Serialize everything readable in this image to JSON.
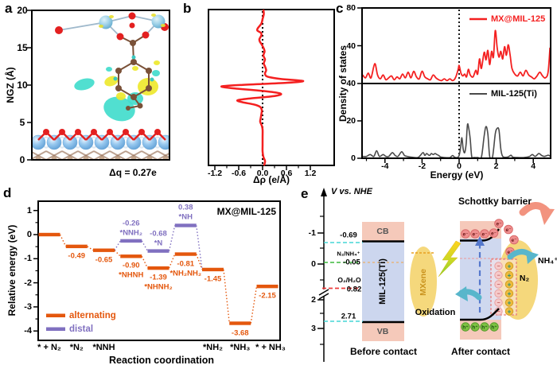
{
  "panels": {
    "a": {
      "letter": "a",
      "ylabel": "NGZ (Å)",
      "yticks": [
        "0",
        "5",
        "10",
        "15",
        "20"
      ],
      "caption": "Δq = 0.27e",
      "illustration": "MXene slab with adsorbed MIL-125 linker and charge-density isosurfaces"
    },
    "b": {
      "letter": "b",
      "xlabel": "Δρ (e/Å)",
      "xticks": [
        "-1.2",
        "-0.6",
        "0.0",
        "0.6",
        "1.2"
      ]
    },
    "c": {
      "letter": "c",
      "ylabel": "Density of states",
      "xlabel": "Energy (eV)",
      "xticks": [
        "-4",
        "-2",
        "0",
        "2",
        "4"
      ],
      "yticks": [
        "80",
        "40",
        "40",
        "20",
        "0"
      ],
      "legend_top": "MX@MIL-125",
      "legend_bottom": "MIL-125(Ti)"
    },
    "d": {
      "letter": "d",
      "ylabel": "Relative energy (eV)",
      "xlabel": "Reaction coordination",
      "yticks": [
        "1",
        "0",
        "-1",
        "-2",
        "-3",
        "-4"
      ],
      "title": "MX@MIL-125",
      "legend": [
        {
          "label": "alternating",
          "color": "#e4570d"
        },
        {
          "label": "distal",
          "color": "#8070c0"
        }
      ]
    },
    "e": {
      "letter": "e",
      "axis_title": "V vs. NHE",
      "ticks": [
        "-1",
        "0",
        "2",
        "3"
      ],
      "cb_edge": "-0.69",
      "redox1": "N₂/NH₄⁺",
      "redox1_v": "-0.05",
      "redox2": "O₂/H₂O",
      "redox2_v": "0.82",
      "vb_edge": "2.71",
      "cb": "CB",
      "vb": "VB",
      "semiconductor": "MIL-125(Ti)",
      "metal": "MXene",
      "schottky": "Schottky barrier",
      "oxidation": "Oxidation",
      "nh4": "NH₄⁺",
      "n2": "N₂",
      "electron": "e⁻",
      "hole": "h⁺",
      "minus": "−",
      "plus": "+",
      "before": "Before contact",
      "after": "After contact"
    }
  },
  "colors": {
    "red_curve": "#f42020",
    "gray_curve": "#4a4a4a",
    "alternating": "#e4570d",
    "distal": "#8070c0",
    "cyan_dash": "#45d6d6",
    "green_dash": "#3cb83c",
    "red_dash": "#ee3b3b",
    "pink_band": "#f5c9ba",
    "blue_band": "#ccd6ee",
    "yellow_metal": "#f5d87c",
    "teal_arrow": "#58b6cb",
    "salmon_arrow": "#f2937f",
    "blue_arrow": "#5578cc",
    "electron_fill": "#ef8f8f",
    "hole_fill": "#7dc242"
  },
  "chart_data": [
    {
      "type": "line",
      "panel": "b",
      "title": "Plane-averaged charge density difference profile",
      "xlabel": "Δρ (e/Å)",
      "xlim": [
        -1.6,
        1.8
      ],
      "zero_line": 0,
      "series": [
        {
          "name": "Δρ",
          "color": "#f42020",
          "points_value_heightfrac": [
            [
              0.02,
              0.0
            ],
            [
              0.03,
              0.03
            ],
            [
              0.0,
              0.06
            ],
            [
              -0.03,
              0.09
            ],
            [
              -0.12,
              0.12
            ],
            [
              -0.13,
              0.135
            ],
            [
              -0.04,
              0.15
            ],
            [
              -0.03,
              0.165
            ],
            [
              -0.08,
              0.19
            ],
            [
              -0.07,
              0.205
            ],
            [
              -0.02,
              0.225
            ],
            [
              0.03,
              0.25
            ],
            [
              0.05,
              0.27
            ],
            [
              0.02,
              0.295
            ],
            [
              0.06,
              0.32
            ],
            [
              0.03,
              0.345
            ],
            [
              0.06,
              0.365
            ],
            [
              0.09,
              0.39
            ],
            [
              0.06,
              0.41
            ],
            [
              0.12,
              0.43
            ],
            [
              0.45,
              0.445
            ],
            [
              1.02,
              0.458
            ],
            [
              0.6,
              0.47
            ],
            [
              -0.5,
              0.483
            ],
            [
              -1.03,
              0.493
            ],
            [
              -0.75,
              0.505
            ],
            [
              -0.1,
              0.52
            ],
            [
              0.35,
              0.533
            ],
            [
              0.46,
              0.545
            ],
            [
              0.2,
              0.558
            ],
            [
              -0.3,
              0.57
            ],
            [
              -0.63,
              0.582
            ],
            [
              -0.5,
              0.595
            ],
            [
              -0.2,
              0.61
            ],
            [
              -0.06,
              0.625
            ],
            [
              -0.02,
              0.645
            ],
            [
              -0.03,
              0.67
            ],
            [
              -0.05,
              0.7
            ],
            [
              -0.06,
              0.72
            ],
            [
              -0.02,
              0.745
            ],
            [
              0.0,
              0.77
            ],
            [
              0.0,
              0.82
            ],
            [
              0.0,
              0.87
            ],
            [
              0.0,
              0.91
            ],
            [
              0.02,
              0.945
            ],
            [
              0.06,
              0.97
            ],
            [
              0.05,
              0.99
            ],
            [
              0.03,
              1.0
            ]
          ]
        }
      ]
    },
    {
      "type": "line",
      "panel": "c",
      "xlabel": "Energy (eV)",
      "ylabel": "Density of states",
      "xlim": [
        -5.2,
        4.9
      ],
      "fermi_line_x": 0,
      "subplots": [
        {
          "name": "MX@MIL-125",
          "color": "#f42020",
          "ylim": [
            0,
            80
          ],
          "points": [
            [
              -5.2,
              9
            ],
            [
              -5.05,
              6
            ],
            [
              -4.9,
              11
            ],
            [
              -4.75,
              6
            ],
            [
              -4.55,
              21
            ],
            [
              -4.4,
              9
            ],
            [
              -4.25,
              5
            ],
            [
              -4.1,
              9
            ],
            [
              -3.95,
              4
            ],
            [
              -3.8,
              6
            ],
            [
              -3.65,
              8
            ],
            [
              -3.5,
              4
            ],
            [
              -3.35,
              7
            ],
            [
              -3.2,
              5
            ],
            [
              -3.05,
              10
            ],
            [
              -2.9,
              6
            ],
            [
              -2.75,
              12
            ],
            [
              -2.6,
              6
            ],
            [
              -2.45,
              13
            ],
            [
              -2.3,
              7
            ],
            [
              -2.15,
              5
            ],
            [
              -2.0,
              13
            ],
            [
              -1.85,
              7
            ],
            [
              -1.7,
              5
            ],
            [
              -1.55,
              4
            ],
            [
              -1.4,
              9
            ],
            [
              -1.25,
              6
            ],
            [
              -1.1,
              4
            ],
            [
              -0.95,
              3
            ],
            [
              -0.8,
              5
            ],
            [
              -0.65,
              3
            ],
            [
              -0.5,
              5
            ],
            [
              -0.35,
              3
            ],
            [
              -0.2,
              6
            ],
            [
              -0.05,
              15
            ],
            [
              0.0,
              19
            ],
            [
              0.1,
              11
            ],
            [
              0.2,
              8
            ],
            [
              0.3,
              10
            ],
            [
              0.4,
              7
            ],
            [
              0.5,
              15
            ],
            [
              0.6,
              9
            ],
            [
              0.75,
              7
            ],
            [
              0.9,
              14
            ],
            [
              1.0,
              10
            ],
            [
              1.1,
              26
            ],
            [
              1.2,
              16
            ],
            [
              1.35,
              33
            ],
            [
              1.45,
              25
            ],
            [
              1.55,
              35
            ],
            [
              1.65,
              20
            ],
            [
              1.75,
              34
            ],
            [
              1.85,
              28
            ],
            [
              1.95,
              56
            ],
            [
              2.05,
              38
            ],
            [
              2.15,
              28
            ],
            [
              2.25,
              34
            ],
            [
              2.35,
              26
            ],
            [
              2.45,
              39
            ],
            [
              2.55,
              30
            ],
            [
              2.65,
              41
            ],
            [
              2.75,
              30
            ],
            [
              2.85,
              16
            ],
            [
              3.0,
              10
            ],
            [
              3.15,
              8
            ],
            [
              3.3,
              12
            ],
            [
              3.45,
              8
            ],
            [
              3.6,
              14
            ],
            [
              3.75,
              9
            ],
            [
              3.9,
              7
            ],
            [
              4.05,
              5
            ],
            [
              4.2,
              8
            ],
            [
              4.35,
              12
            ],
            [
              4.5,
              8
            ],
            [
              4.65,
              6
            ],
            [
              4.8,
              12
            ],
            [
              4.9,
              38
            ]
          ]
        },
        {
          "name": "MIL-125(Ti)",
          "color": "#4a4a4a",
          "ylim": [
            0,
            40
          ],
          "points": [
            [
              -5.2,
              1
            ],
            [
              -5.0,
              1
            ],
            [
              -4.8,
              2
            ],
            [
              -4.6,
              1
            ],
            [
              -4.45,
              4
            ],
            [
              -4.3,
              1
            ],
            [
              -4.1,
              2
            ],
            [
              -3.95,
              1
            ],
            [
              -3.8,
              1
            ],
            [
              -3.6,
              3
            ],
            [
              -3.45,
              1.5
            ],
            [
              -3.3,
              1
            ],
            [
              -3.1,
              3.5
            ],
            [
              -2.95,
              1.5
            ],
            [
              -2.8,
              1
            ],
            [
              -2.5,
              0.5
            ],
            [
              -2.2,
              0.5
            ],
            [
              -1.95,
              3
            ],
            [
              -1.85,
              1.5
            ],
            [
              -1.75,
              2.5
            ],
            [
              -1.6,
              1.5
            ],
            [
              -1.5,
              2.5
            ],
            [
              -1.4,
              2
            ],
            [
              -1.3,
              2.5
            ],
            [
              -1.2,
              2
            ],
            [
              -1.1,
              1.5
            ],
            [
              -1.0,
              0.7
            ],
            [
              -0.8,
              0.4
            ],
            [
              -0.5,
              0.4
            ],
            [
              -0.35,
              1.5
            ],
            [
              -0.25,
              0.6
            ],
            [
              -0.1,
              0.4
            ],
            [
              0.0,
              1.5
            ],
            [
              0.08,
              6
            ],
            [
              0.15,
              11
            ],
            [
              0.22,
              5
            ],
            [
              0.3,
              3
            ],
            [
              0.38,
              8
            ],
            [
              0.45,
              18
            ],
            [
              0.52,
              16
            ],
            [
              0.6,
              10
            ],
            [
              0.68,
              1
            ],
            [
              0.8,
              0.4
            ],
            [
              1.0,
              0.4
            ],
            [
              1.2,
              0.6
            ],
            [
              1.35,
              12
            ],
            [
              1.45,
              17
            ],
            [
              1.55,
              13
            ],
            [
              1.65,
              1
            ],
            [
              1.8,
              0.5
            ],
            [
              1.95,
              13
            ],
            [
              2.05,
              16
            ],
            [
              2.15,
              15
            ],
            [
              2.25,
              5
            ],
            [
              2.35,
              1
            ],
            [
              2.6,
              0.6
            ],
            [
              2.8,
              1.6
            ],
            [
              2.9,
              0.6
            ],
            [
              3.2,
              0.4
            ],
            [
              3.5,
              0.4
            ],
            [
              3.8,
              1
            ],
            [
              3.95,
              2
            ],
            [
              4.1,
              1
            ],
            [
              4.3,
              2.5
            ],
            [
              4.45,
              1.5
            ],
            [
              4.6,
              1
            ],
            [
              4.8,
              1.6
            ],
            [
              4.9,
              1.2
            ]
          ]
        }
      ]
    },
    {
      "type": "line",
      "panel": "d",
      "title": "MX@MIL-125",
      "xlabel": "Reaction coordination",
      "ylabel": "Relative energy (eV)",
      "ylim": [
        -4.4,
        1.4
      ],
      "categories": [
        "* + N₂",
        "*N₂",
        "*NNH",
        "",
        "",
        "",
        "*NH₂",
        "*NH₃",
        "* + NH₃"
      ],
      "series": [
        {
          "name": "alternating",
          "color": "#e4570d",
          "stages": [
            0,
            1,
            2,
            3,
            4,
            5,
            6,
            7,
            8
          ],
          "values": [
            0,
            -0.49,
            -0.65,
            -0.9,
            -1.39,
            -0.81,
            -1.45,
            -3.68,
            -2.15
          ],
          "value_labels": [
            "",
            "-0.49",
            "-0.65",
            "-0.90",
            "-1.39",
            "-0.81",
            "-1.45",
            "-3.68",
            "-2.15"
          ],
          "species_labels": [
            "",
            "",
            "",
            "*NHNH",
            "*NHNH₂",
            "*NH₂NH₂",
            "",
            "",
            ""
          ]
        },
        {
          "name": "distal",
          "color": "#8070c0",
          "stages": [
            3,
            4,
            5
          ],
          "values": [
            -0.26,
            -0.68,
            0.38
          ],
          "value_labels": [
            "-0.26",
            "-0.68",
            "0.38"
          ],
          "species_labels": [
            "*NNH₂",
            "*N",
            "*NH"
          ]
        }
      ]
    },
    {
      "type": "diagram",
      "panel": "e",
      "title": "Band alignment vs. NHE before and after contact",
      "levels": [
        {
          "name": "CB edge MIL-125(Ti)",
          "value": -0.69
        },
        {
          "name": "N₂/NH₄⁺ redox",
          "value": -0.05
        },
        {
          "name": "O₂/H₂O redox",
          "value": 0.82
        },
        {
          "name": "VB edge MIL-125(Ti)",
          "value": 2.71
        }
      ]
    }
  ]
}
